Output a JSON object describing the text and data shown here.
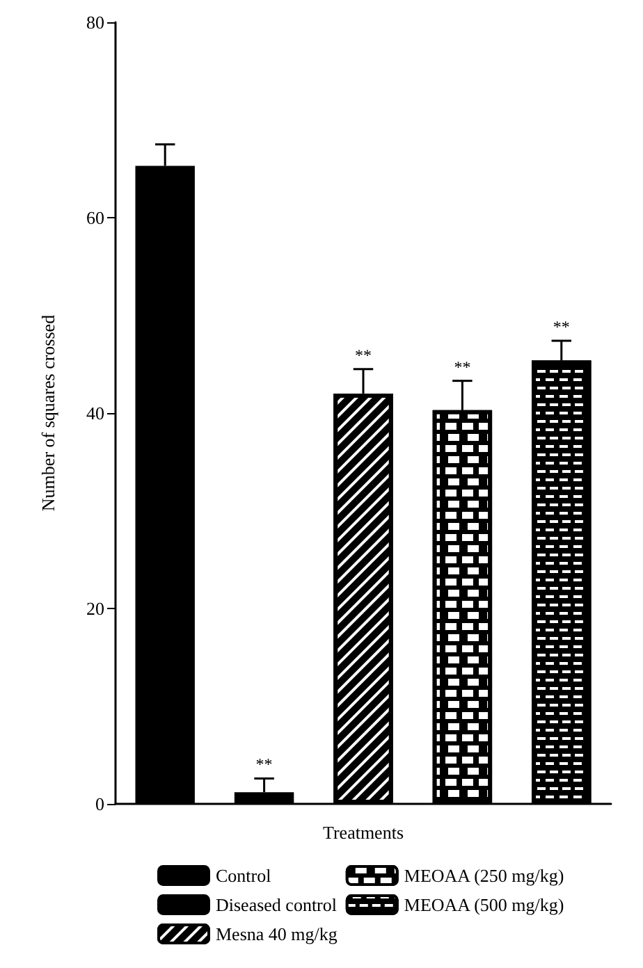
{
  "chart_data": {
    "type": "bar",
    "xlabel": "Treatments",
    "ylabel": "Number of squares crossed",
    "categories": [
      null,
      null,
      null,
      null,
      null
    ],
    "series": [
      {
        "name": "Control",
        "color": "#000000",
        "values": [
          65.3,
          null,
          null,
          null,
          null
        ],
        "errors": [
          2.2,
          null,
          null,
          null,
          null
        ],
        "value_labels": [
          null,
          null,
          null,
          null,
          null
        ]
      },
      {
        "name": "Diseased control",
        "color": "#000000",
        "values": [
          null,
          1.2,
          null,
          null,
          null
        ],
        "errors": [
          null,
          1.4,
          null,
          null,
          null
        ],
        "value_labels": [
          null,
          "**",
          null,
          null,
          null
        ]
      },
      {
        "name": "Mesna 40 mg/kg",
        "color": "#000000",
        "values": [
          null,
          null,
          42.0,
          null,
          null
        ],
        "errors": [
          null,
          null,
          2.5,
          null,
          null
        ],
        "value_labels": [
          null,
          null,
          "**",
          null,
          null
        ]
      },
      {
        "name": "MEOAA (250 mg/kg)",
        "color": "#000000",
        "values": [
          null,
          null,
          null,
          40.3,
          null
        ],
        "errors": [
          null,
          null,
          null,
          3.0,
          null
        ],
        "value_labels": [
          null,
          null,
          null,
          "**",
          null
        ]
      },
      {
        "name": "MEOAA (500 mg/kg)",
        "color": "#000000",
        "values": [
          null,
          null,
          null,
          null,
          45.4
        ],
        "errors": [
          null,
          null,
          null,
          null,
          2.0
        ],
        "value_labels": [
          null,
          null,
          null,
          null,
          "**"
        ]
      }
    ],
    "ylim": [
      0,
      80
    ],
    "yticks": [
      0,
      20,
      40,
      60,
      80
    ],
    "grid": false,
    "legend": "bottom",
    "tick_labels": "y"
  }
}
